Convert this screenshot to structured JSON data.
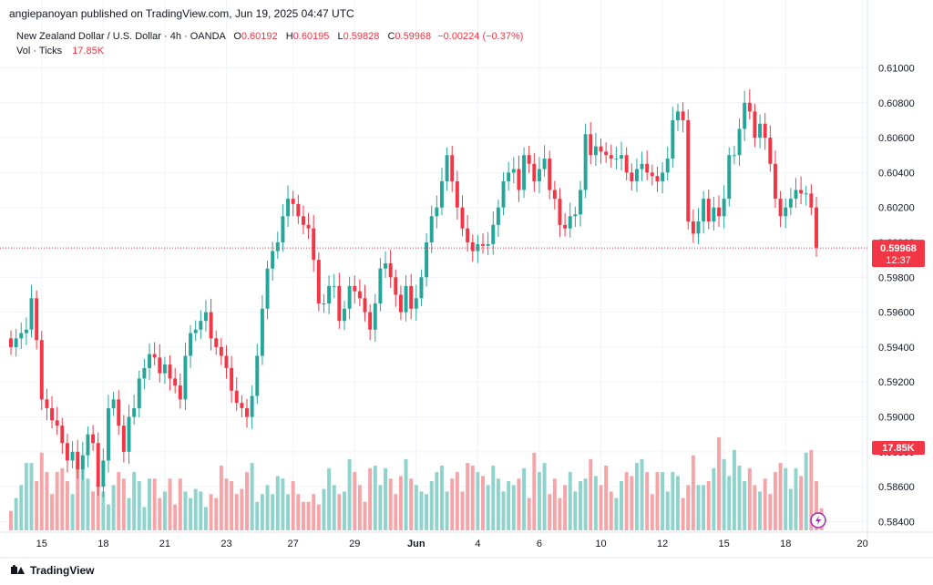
{
  "header": {
    "publisher_line": "angiepanoyan published on TradingView.com, Jun 19, 2025 04:47 UTC"
  },
  "legend": {
    "symbol": "New Zealand Dollar / U.S. Dollar · 4h · OANDA",
    "o_label": "O",
    "o_value": "0.60192",
    "h_label": "H",
    "h_value": "0.60195",
    "l_label": "L",
    "l_value": "0.59828",
    "c_label": "C",
    "c_value": "0.59968",
    "change": "−0.00224 (−0.37%)",
    "vol_label": "Vol · Ticks",
    "vol_value": "17.85K"
  },
  "footer": {
    "brand": "TradingView"
  },
  "colors": {
    "up": "#26a69a",
    "down": "#f23645",
    "up_vol": "#8fd3cc",
    "down_vol": "#f5a5a8"
  },
  "chart_data": {
    "type": "candlestick",
    "symbol": "NZDUSD",
    "timeframe": "4h",
    "y_ticks": [
      "0.61000",
      "0.60800",
      "0.60600",
      "0.60400",
      "0.60200",
      "0.60000",
      "0.59800",
      "0.59600",
      "0.59400",
      "0.59200",
      "0.59000",
      "0.58800",
      "0.58600",
      "0.58400"
    ],
    "x_ticks": [
      "15",
      "18",
      "21",
      "23",
      "27",
      "29",
      "Jun",
      "4",
      "6",
      "10",
      "12",
      "15",
      "18",
      "20"
    ],
    "ylim": [
      0.5835,
      0.6118
    ],
    "grid": true,
    "last_price": {
      "value": 0.59968,
      "label": "0.59968",
      "countdown": "12:37"
    },
    "last_volume_label": "17.85K",
    "close": [
      0.594,
      0.5945,
      0.5948,
      0.595,
      0.5968,
      0.5944,
      0.591,
      0.5905,
      0.5898,
      0.5895,
      0.5885,
      0.5875,
      0.588,
      0.587,
      0.5878,
      0.589,
      0.5885,
      0.586,
      0.5875,
      0.5905,
      0.591,
      0.5895,
      0.588,
      0.59,
      0.5905,
      0.5922,
      0.5928,
      0.5936,
      0.5934,
      0.5925,
      0.593,
      0.5922,
      0.5918,
      0.591,
      0.5935,
      0.5948,
      0.595,
      0.5955,
      0.596,
      0.5945,
      0.594,
      0.5935,
      0.5928,
      0.5915,
      0.5908,
      0.5905,
      0.59,
      0.5912,
      0.5935,
      0.5962,
      0.5985,
      0.5995,
      0.6,
      0.6015,
      0.6025,
      0.6022,
      0.6015,
      0.601,
      0.6008,
      0.599,
      0.5965,
      0.5965,
      0.5975,
      0.5975,
      0.5955,
      0.5962,
      0.5975,
      0.5972,
      0.5968,
      0.596,
      0.595,
      0.5965,
      0.5985,
      0.5988,
      0.598,
      0.597,
      0.596,
      0.5975,
      0.5962,
      0.5968,
      0.598,
      0.6,
      0.6015,
      0.602,
      0.6035,
      0.605,
      0.6035,
      0.602,
      0.6008,
      0.6,
      0.5995,
      0.5999,
      0.5998,
      0.5999,
      0.601,
      0.602,
      0.6035,
      0.604,
      0.6042,
      0.603,
      0.605,
      0.6045,
      0.6035,
      0.6042,
      0.6048,
      0.603,
      0.6025,
      0.601,
      0.6008,
      0.6015,
      0.6016,
      0.603,
      0.6062,
      0.605,
      0.6055,
      0.6052,
      0.605,
      0.6048,
      0.6048,
      0.605,
      0.604,
      0.6035,
      0.6042,
      0.6045,
      0.604,
      0.6038,
      0.6035,
      0.604,
      0.6048,
      0.607,
      0.6075,
      0.607,
      0.6012,
      0.6005,
      0.6012,
      0.6025,
      0.6012,
      0.602,
      0.6015,
      0.6025,
      0.605,
      0.605,
      0.6065,
      0.608,
      0.6075,
      0.606,
      0.6068,
      0.606,
      0.6045,
      0.6025,
      0.6015,
      0.602,
      0.6025,
      0.603,
      0.6028,
      0.6028,
      0.602,
      0.5997
    ],
    "volume_relative": [
      0.15,
      0.25,
      0.35,
      0.52,
      0.52,
      0.38,
      0.6,
      0.45,
      0.28,
      0.45,
      0.48,
      0.38,
      0.28,
      0.48,
      0.48,
      0.4,
      0.3,
      0.35,
      0.3,
      0.2,
      0.35,
      0.45,
      0.4,
      0.25,
      0.45,
      0.38,
      0.18,
      0.4,
      0.4,
      0.25,
      0.3,
      0.4,
      0.2,
      0.4,
      0.3,
      0.25,
      0.32,
      0.3,
      0.18,
      0.28,
      0.25,
      0.5,
      0.4,
      0.38,
      0.28,
      0.32,
      0.45,
      0.52,
      0.22,
      0.28,
      0.35,
      0.28,
      0.42,
      0.4,
      0.28,
      0.38,
      0.28,
      0.22,
      0.22,
      0.28,
      0.2,
      0.32,
      0.48,
      0.35,
      0.28,
      0.3,
      0.55,
      0.45,
      0.35,
      0.22,
      0.48,
      0.5,
      0.35,
      0.48,
      0.4,
      0.28,
      0.42,
      0.55,
      0.4,
      0.35,
      0.3,
      0.28,
      0.38,
      0.45,
      0.5,
      0.3,
      0.4,
      0.45,
      0.3,
      0.52,
      0.5,
      0.45,
      0.42,
      0.35,
      0.5,
      0.4,
      0.3,
      0.38,
      0.35,
      0.4,
      0.48,
      0.25,
      0.6,
      0.45,
      0.52,
      0.28,
      0.4,
      0.25,
      0.35,
      0.45,
      0.3,
      0.38,
      0.4,
      0.55,
      0.42,
      0.35,
      0.5,
      0.3,
      0.25,
      0.38,
      0.45,
      0.42,
      0.52,
      0.55,
      0.45,
      0.28,
      0.45,
      0.45,
      0.3,
      0.45,
      0.42,
      0.25,
      0.35,
      0.58,
      0.35,
      0.35,
      0.38,
      0.48,
      0.72,
      0.55,
      0.42,
      0.62,
      0.5,
      0.38,
      0.48,
      0.35,
      0.3,
      0.4,
      0.28,
      0.45,
      0.52,
      0.48,
      0.32,
      0.48,
      0.42,
      0.6,
      0.62,
      0.38,
      0.17
    ],
    "volume_ylim": [
      0,
      1
    ],
    "series": [
      {
        "name": "Vol · Ticks",
        "values": "volume_relative"
      }
    ]
  }
}
